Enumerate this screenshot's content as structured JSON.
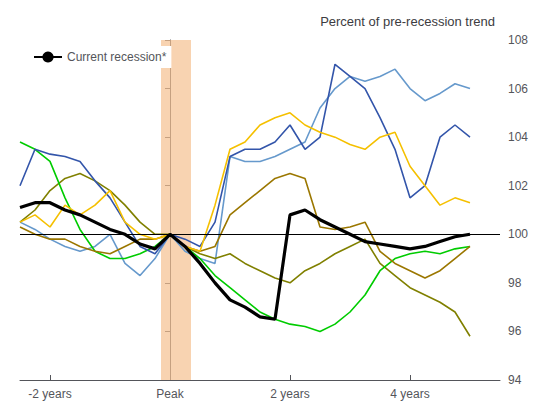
{
  "chart_data": {
    "type": "line",
    "title": "Percent of pre-recession trend",
    "x": [
      -2.5,
      -2.25,
      -2.0,
      -1.75,
      -1.5,
      -1.25,
      -1.0,
      -0.75,
      -0.5,
      -0.25,
      0.0,
      0.25,
      0.5,
      0.75,
      1.0,
      1.25,
      1.5,
      1.75,
      2.0,
      2.25,
      2.5,
      2.75,
      3.0,
      3.25,
      3.5,
      3.75,
      4.0,
      4.25,
      4.5,
      4.75,
      5.0
    ],
    "xlim": [
      -2.5,
      5.5
    ],
    "xticks": [
      {
        "value": -2,
        "label": "-2 years"
      },
      {
        "value": 0,
        "label": "Peak"
      },
      {
        "value": 2,
        "label": "2 years"
      },
      {
        "value": 4,
        "label": "4 years"
      }
    ],
    "ylim": [
      94,
      108
    ],
    "yticks": [
      94,
      96,
      98,
      100,
      102,
      104,
      106,
      108
    ],
    "grid": false,
    "legend": "upper left",
    "spans": [
      {
        "x": [
          -0.15,
          0.35
        ],
        "color": "#f5c090"
      }
    ],
    "hlines": [
      {
        "y": 100,
        "color": "#000000"
      }
    ],
    "series": [
      {
        "color": "#6699cc",
        "values": [
          100.5,
          100.2,
          99.8,
          99.5,
          99.3,
          99.5,
          100.0,
          98.8,
          98.3,
          99.0,
          100.0,
          99.3,
          99.0,
          98.8,
          103.2,
          103.0,
          103.0,
          103.2,
          103.5,
          103.8,
          105.2,
          106.0,
          106.5,
          106.3,
          106.5,
          106.8,
          106.0,
          105.5,
          105.8,
          106.2,
          106.0
        ]
      },
      {
        "color": "#808000",
        "values": [
          100.5,
          101.0,
          101.8,
          102.3,
          102.5,
          102.2,
          101.8,
          101.2,
          100.5,
          100.0,
          100.0,
          99.5,
          99.2,
          99.0,
          99.2,
          98.8,
          98.5,
          98.2,
          98.0,
          98.5,
          98.8,
          99.2,
          99.5,
          99.8,
          98.8,
          98.3,
          97.8,
          97.5,
          97.2,
          96.8,
          95.8
        ]
      },
      {
        "color": "#00cc00",
        "values": [
          103.8,
          103.5,
          103.0,
          101.5,
          100.2,
          99.3,
          99.0,
          99.0,
          99.2,
          99.5,
          100.0,
          99.5,
          99.0,
          98.3,
          97.8,
          97.3,
          96.8,
          96.5,
          96.3,
          96.2,
          96.0,
          96.3,
          96.8,
          97.5,
          98.5,
          99.0,
          99.2,
          99.3,
          99.2,
          99.4,
          99.5
        ]
      },
      {
        "color": "#3355aa",
        "values": [
          102.0,
          103.5,
          103.3,
          103.2,
          103.0,
          102.2,
          101.5,
          100.5,
          99.5,
          99.2,
          100.0,
          99.8,
          99.5,
          100.5,
          103.2,
          103.5,
          103.5,
          103.8,
          104.5,
          103.5,
          104.0,
          107.0,
          106.5,
          106.0,
          104.8,
          103.5,
          101.5,
          102.0,
          104.0,
          104.5,
          104.0
        ]
      },
      {
        "color": "#9b7700",
        "values": [
          100.3,
          100.0,
          99.8,
          99.8,
          99.5,
          99.3,
          99.2,
          99.5,
          99.8,
          99.8,
          100.0,
          99.5,
          99.3,
          99.5,
          100.8,
          101.3,
          101.8,
          102.3,
          102.5,
          102.3,
          100.3,
          100.2,
          100.3,
          100.5,
          99.3,
          98.8,
          98.5,
          98.2,
          98.5,
          99.0,
          99.5
        ]
      },
      {
        "color": "#f5c000",
        "values": [
          100.5,
          100.8,
          100.3,
          101.2,
          100.8,
          101.2,
          101.8,
          100.5,
          100.0,
          99.8,
          100.0,
          99.5,
          99.3,
          101.2,
          103.5,
          103.8,
          104.5,
          104.8,
          105.0,
          104.5,
          104.2,
          104.0,
          103.7,
          103.5,
          104.0,
          104.2,
          102.8,
          102.0,
          101.2,
          101.5,
          101.3
        ]
      },
      {
        "name": "Current recession*",
        "color": "#000000",
        "values": [
          101.1,
          101.3,
          101.3,
          101.0,
          100.8,
          100.5,
          100.2,
          100.0,
          99.6,
          99.4,
          100.0,
          99.5,
          98.8,
          98.0,
          97.3,
          97.0,
          96.6,
          96.5,
          100.8,
          101.0,
          100.6,
          100.3,
          100.0,
          99.7,
          99.6,
          99.5,
          99.4,
          99.5,
          99.7,
          99.9,
          100.0
        ]
      }
    ]
  }
}
